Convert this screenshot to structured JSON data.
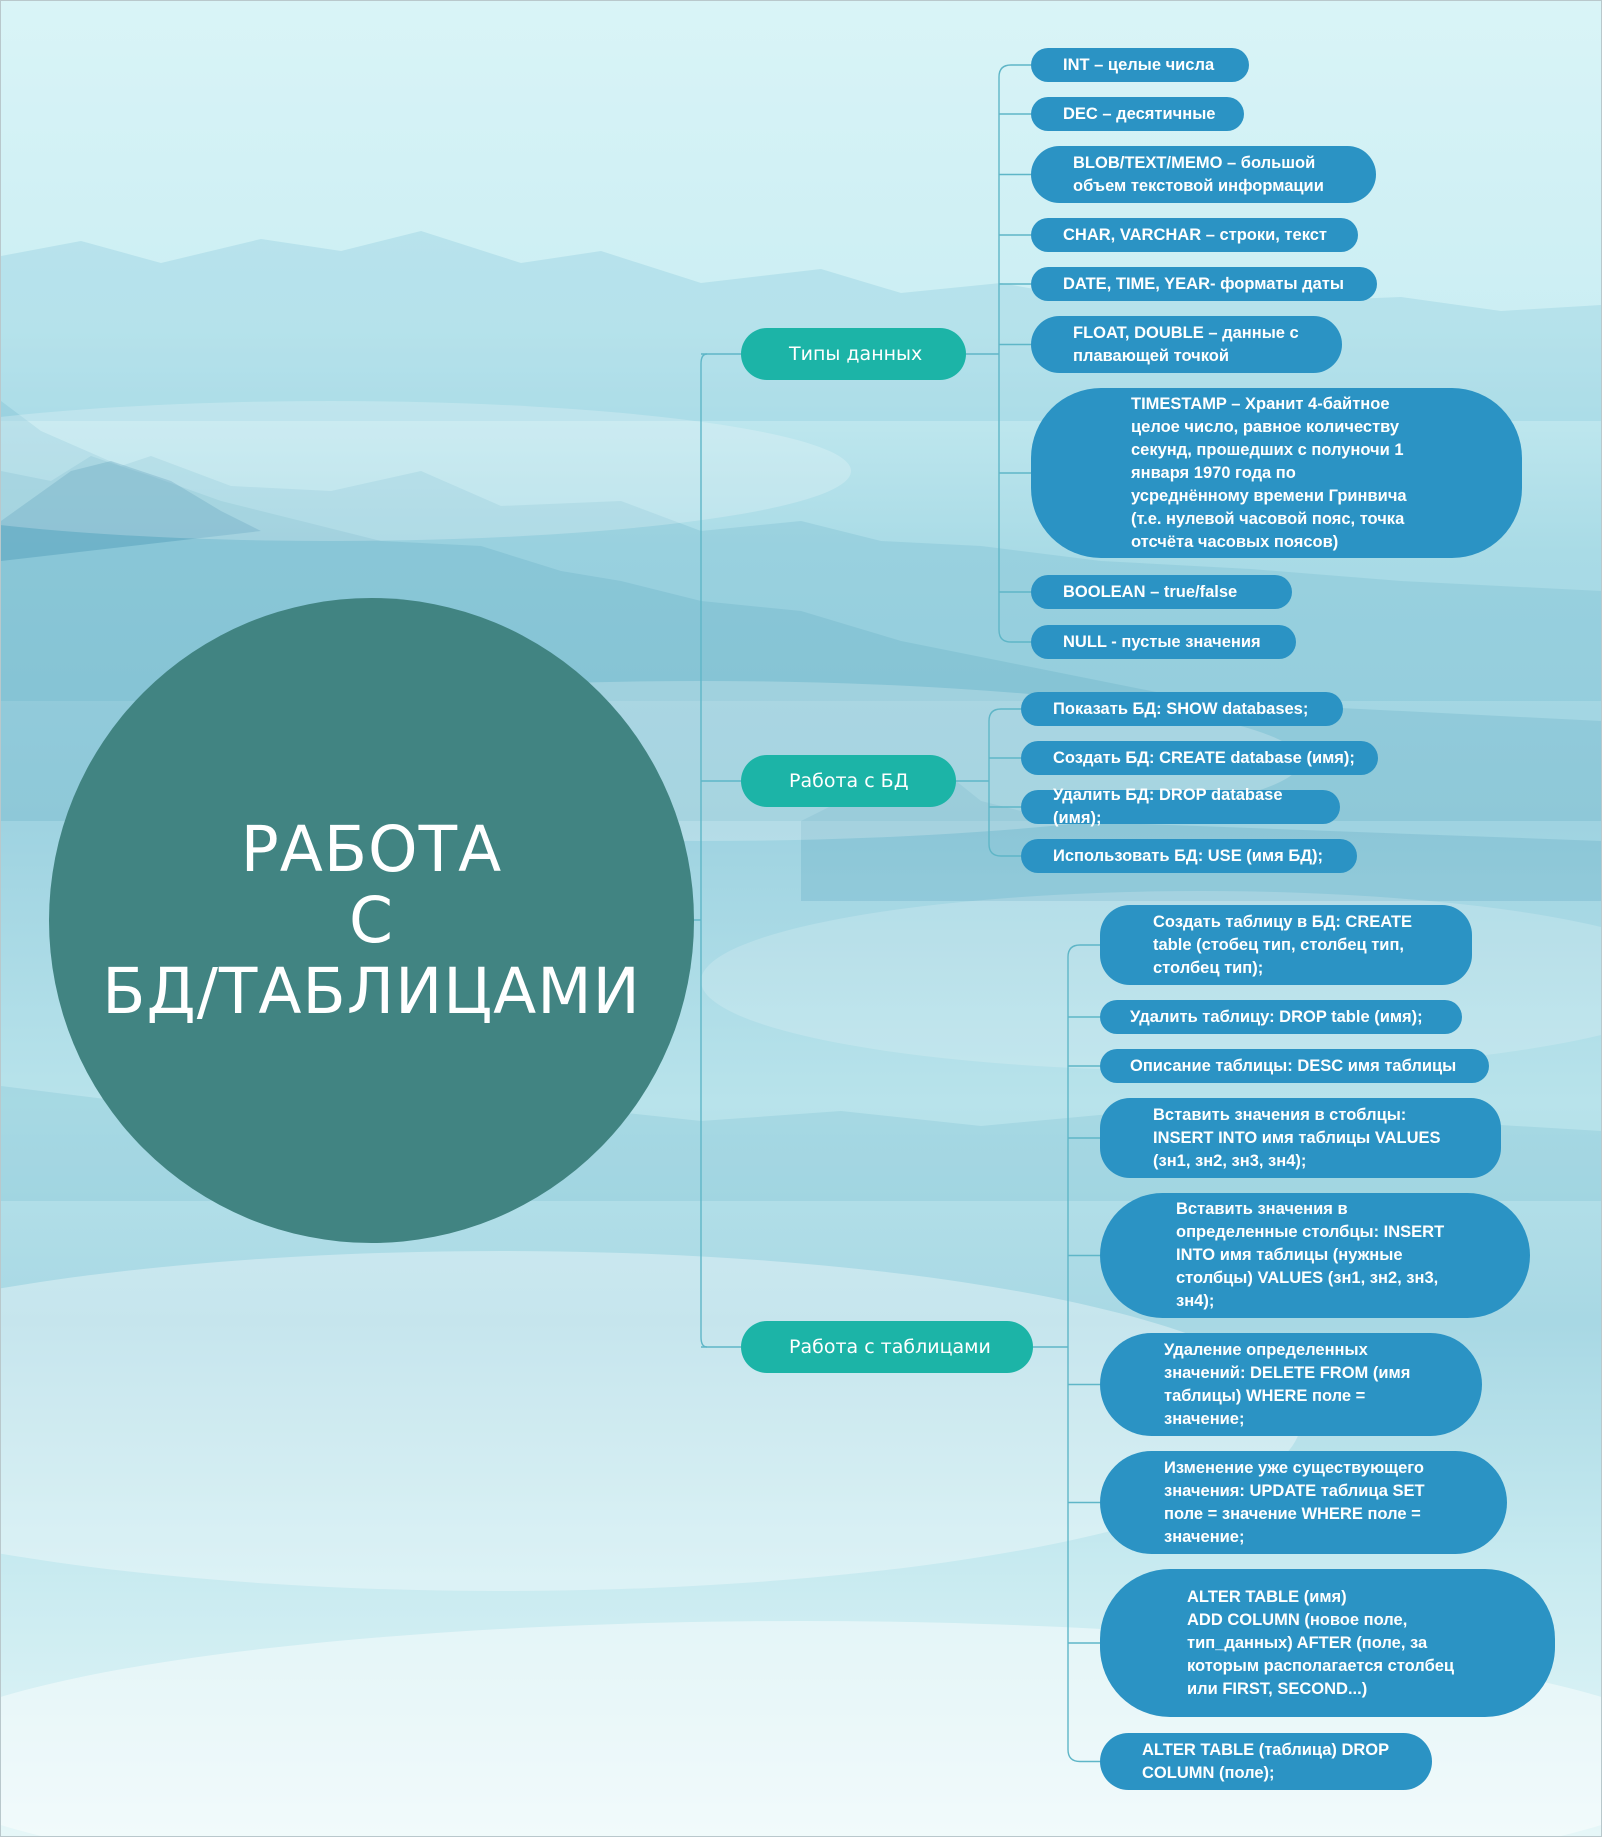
{
  "title_lines": [
    "РАБОТА",
    "С",
    "БД/ТАБЛИЦАМИ"
  ],
  "colors": {
    "center": "#418482",
    "branch": "#1cb4a7",
    "leaf": "#2b93c4",
    "connector": "#5fb6c7"
  },
  "branches": [
    {
      "label": "Типы данных",
      "items": [
        "INT – целые числа",
        "DEC – десятичные",
        "BLOB/TEXT/MEMO – большой\nобъем текстовой информации",
        "CHAR, VARCHAR – строки, текст",
        "DATE, TIME, YEAR- форматы даты",
        "FLOAT, DOUBLE – данные с\nплавающей точкой",
        "TIMESTAMP – Хранит 4-байтное\nцелое число, равное количеству\nсекунд, прошедших с полуночи 1\nянваря 1970 года по\nусреднённому времени Гринвича\n(т.е. нулевой часовой пояс, точка\nотсчёта часовых поясов)",
        "BOOLEAN – true/false",
        "NULL - пустые значения"
      ]
    },
    {
      "label": "Работа с БД",
      "items": [
        "Показать БД: SHOW databases;",
        "Создать БД: CREATE database (имя);",
        "Удалить БД: DROP database (имя);",
        "Использовать БД: USE (имя БД);"
      ]
    },
    {
      "label": "Работа с таблицами",
      "items": [
        "Создать таблицу в БД: CREATE\ntable (стобец тип, столбец тип,\nстолбец тип);",
        "Удалить таблицу: DROP table (имя);",
        "Описание таблицы: DESC имя таблицы",
        "Вставить значения в стоблцы:\nINSERT INTO имя таблицы VALUES\n(зн1, зн2, зн3, зн4);",
        "Вставить значения в\nопределенные столбцы: INSERT\nINTO имя таблицы (нужные\nстолбцы) VALUES (зн1, зн2, зн3,\nзн4);",
        "Удаление определенных\nзначений: DELETE FROM (имя\nтаблицы) WHERE поле =\nзначение;",
        "Изменение уже существующего\nзначения: UPDATE таблица SET\nполе = значение WHERE поле =\nзначение;",
        "ALTER TABLE (имя)\nADD COLUMN (новое поле,\nтип_данных)  AFTER (поле, за\nкоторым располагается столбец\nили FIRST, SECOND...)",
        "ALTER TABLE (таблица) DROP\nCOLUMN (поле);"
      ]
    }
  ]
}
